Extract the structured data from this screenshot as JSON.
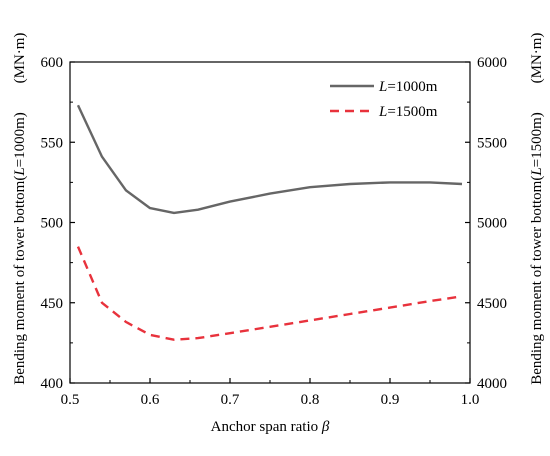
{
  "chart_data": {
    "type": "line",
    "xlabel": "Anchor span ratio β",
    "ylabel_left": "Bending moment of tower bottom(L=1000m)",
    "ylabel_right": "Bending moment of tower bottom(L=1500m)",
    "unit_left": "(MN·m)",
    "unit_right": "(MN·m)",
    "xlim": [
      0.5,
      1.0
    ],
    "ylim_left": [
      400,
      600
    ],
    "ylim_right": [
      4000,
      6000
    ],
    "x_ticks": [
      "0.5",
      "0.6",
      "0.7",
      "0.8",
      "0.9",
      "1.0"
    ],
    "y_ticks_left": [
      "400",
      "450",
      "500",
      "550",
      "600"
    ],
    "y_ticks_right": [
      "4000",
      "4500",
      "5000",
      "5500",
      "6000"
    ],
    "grid": false,
    "legend_position": "top-right",
    "series": [
      {
        "name_italic": "L",
        "name_rest": "=1000m",
        "axis": "left",
        "color": "#666666",
        "style": "solid",
        "x": [
          0.51,
          0.54,
          0.57,
          0.6,
          0.63,
          0.66,
          0.7,
          0.75,
          0.8,
          0.85,
          0.9,
          0.95,
          0.99
        ],
        "y": [
          573,
          541,
          520,
          509,
          506,
          508,
          513,
          518,
          522,
          524,
          525,
          525,
          524
        ]
      },
      {
        "name_italic": "L",
        "name_rest": "=1500m",
        "axis": "right",
        "color": "#e8323c",
        "style": "dashed",
        "x": [
          0.51,
          0.54,
          0.57,
          0.6,
          0.63,
          0.66,
          0.7,
          0.75,
          0.8,
          0.85,
          0.9,
          0.95,
          0.99
        ],
        "y": [
          4850,
          4500,
          4380,
          4300,
          4270,
          4280,
          4310,
          4350,
          4390,
          4430,
          4470,
          4510,
          4540
        ]
      }
    ]
  }
}
